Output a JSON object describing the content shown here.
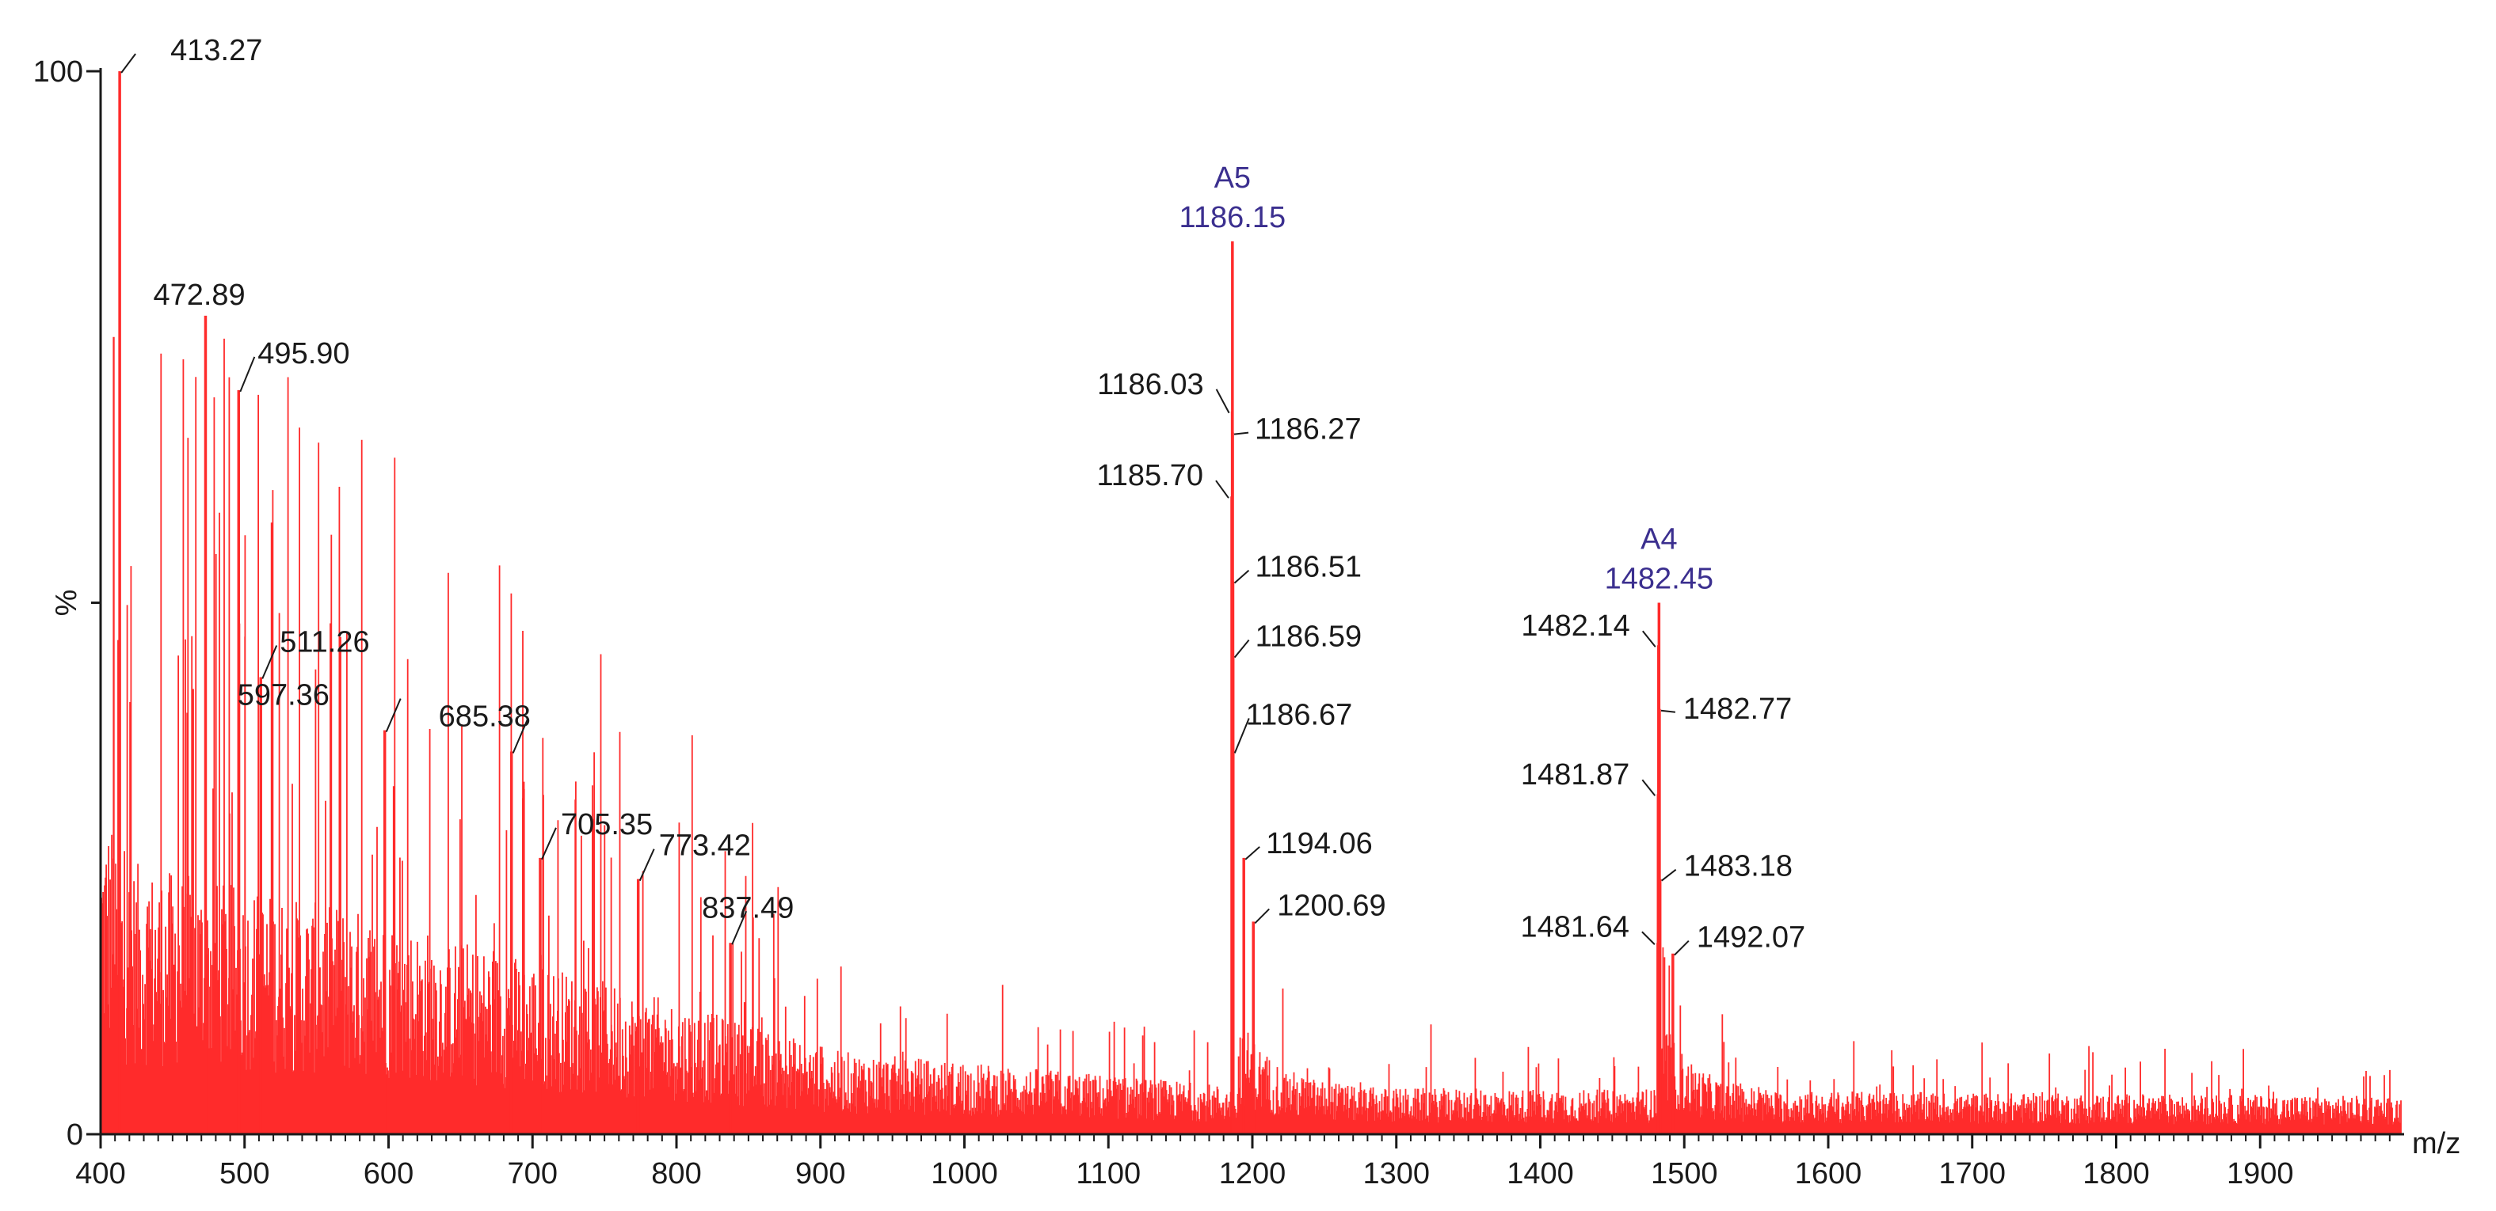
{
  "chart_data": {
    "type": "bar",
    "xlabel": "m/z",
    "ylabel": "%",
    "xlim": [
      400,
      2000
    ],
    "ylim": [
      0,
      100
    ],
    "x_ticks": [
      400,
      500,
      600,
      700,
      800,
      900,
      1000,
      1100,
      1200,
      1300,
      1400,
      1500,
      1600,
      1700,
      1800,
      1900
    ],
    "y_ticks": [
      0,
      100
    ],
    "grid": false,
    "series_color": "#ff2b2b",
    "label_color": "#1a1a1a",
    "ion_label_color": "#3b2f8f",
    "labeled_peaks": [
      {
        "mz": 413.27,
        "intensity": 100,
        "label": "413.27"
      },
      {
        "mz": 472.89,
        "intensity": 77,
        "label": "472.89"
      },
      {
        "mz": 495.9,
        "intensity": 70,
        "label": "495.90"
      },
      {
        "mz": 511.26,
        "intensity": 43,
        "label": "511.26"
      },
      {
        "mz": 597.36,
        "intensity": 38,
        "label": "597.36"
      },
      {
        "mz": 685.38,
        "intensity": 36,
        "label": "685.38"
      },
      {
        "mz": 705.35,
        "intensity": 26,
        "label": "705.35"
      },
      {
        "mz": 773.42,
        "intensity": 24,
        "label": "773.42"
      },
      {
        "mz": 837.49,
        "intensity": 18,
        "label": "837.49"
      },
      {
        "mz": 1186.15,
        "intensity": 84,
        "label": "1186.15",
        "ion": "A5"
      },
      {
        "mz": 1186.03,
        "intensity": 68,
        "label": "1186.03"
      },
      {
        "mz": 1186.27,
        "intensity": 66,
        "label": "1186.27"
      },
      {
        "mz": 1185.7,
        "intensity": 60,
        "label": "1185.70"
      },
      {
        "mz": 1186.51,
        "intensity": 52,
        "label": "1186.51"
      },
      {
        "mz": 1186.59,
        "intensity": 45,
        "label": "1186.59"
      },
      {
        "mz": 1186.67,
        "intensity": 36,
        "label": "1186.67"
      },
      {
        "mz": 1194.06,
        "intensity": 26,
        "label": "1194.06"
      },
      {
        "mz": 1200.69,
        "intensity": 20,
        "label": "1200.69"
      },
      {
        "mz": 1482.45,
        "intensity": 50,
        "label": "1482.45",
        "ion": "A4"
      },
      {
        "mz": 1482.14,
        "intensity": 46,
        "label": "1482.14"
      },
      {
        "mz": 1482.77,
        "intensity": 40,
        "label": "1482.77"
      },
      {
        "mz": 1481.87,
        "intensity": 32,
        "label": "1481.87"
      },
      {
        "mz": 1483.18,
        "intensity": 24,
        "label": "1483.18"
      },
      {
        "mz": 1481.64,
        "intensity": 18,
        "label": "1481.64"
      },
      {
        "mz": 1492.07,
        "intensity": 17,
        "label": "1492.07"
      }
    ]
  }
}
